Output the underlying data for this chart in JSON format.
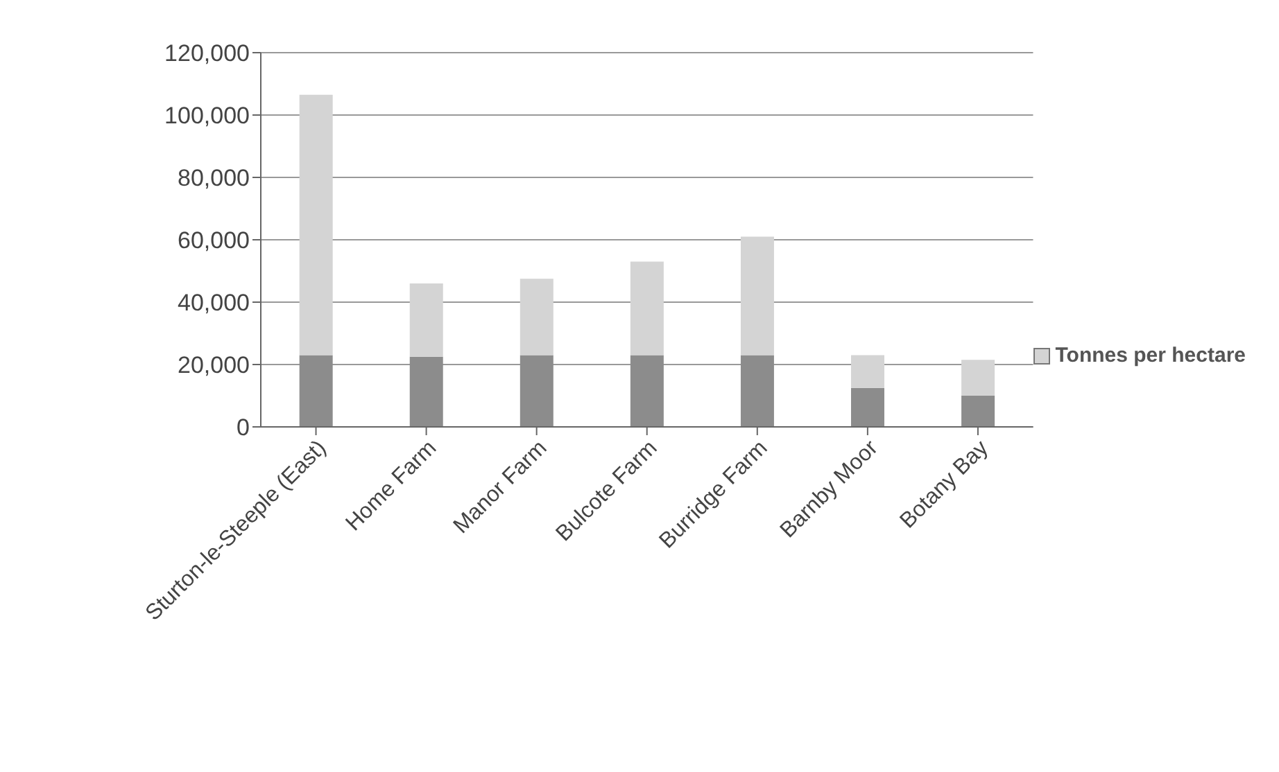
{
  "chart_data": {
    "type": "bar",
    "stacked": true,
    "categories": [
      "Sturton-le-Steeple (East)",
      "Home Farm",
      "Manor Farm",
      "Bulcote Farm",
      "Burridge Farm",
      "Barnby Moor",
      "Botany Bay"
    ],
    "series": [
      {
        "color": "#8c8c8c",
        "values": [
          23000,
          22500,
          23000,
          23000,
          23000,
          12500,
          10000
        ]
      },
      {
        "name": "Tonnes per hectare",
        "color": "#d4d4d4",
        "values": [
          83500,
          23500,
          24500,
          30000,
          38000,
          10500,
          11500
        ]
      }
    ],
    "ylim": [
      0,
      120000
    ],
    "yticks": [
      0,
      {
        "value": 20000,
        "label": "20,000"
      },
      {
        "value": 40000,
        "label": "40,000"
      },
      {
        "value": 60000,
        "label": "60,000"
      },
      {
        "value": 80000,
        "label": "80,000"
      },
      {
        "value": 100000,
        "label": "100,000"
      },
      {
        "value": 120000,
        "label": "120,000"
      }
    ],
    "grid": "y",
    "legend": "right"
  }
}
